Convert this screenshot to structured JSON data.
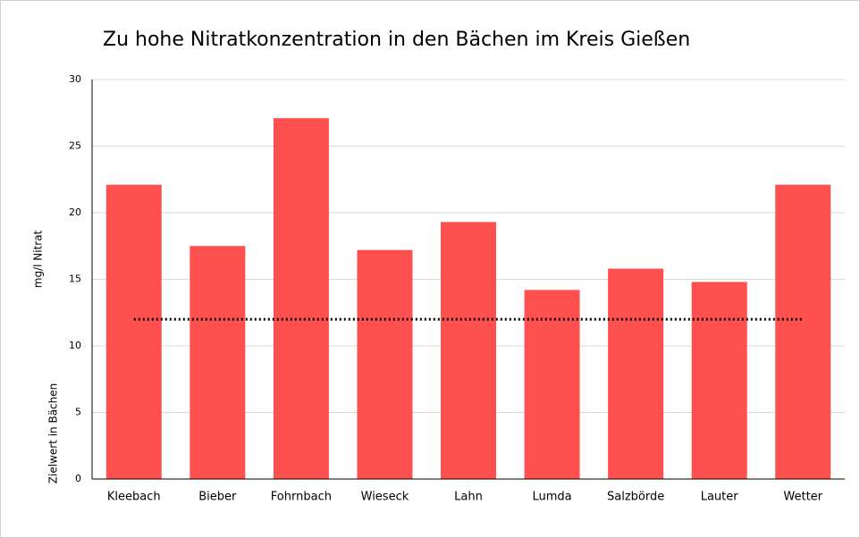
{
  "chart_data": {
    "type": "bar",
    "title": "Zu hohe Nitratkonzentration in den Bächen im Kreis Gießen",
    "y_label": "mg/l Nitrat",
    "categories": [
      "Kleebach",
      "Bieber",
      "Fohrnbach",
      "Wieseck",
      "Lahn",
      "Lumda",
      "Salzbörde",
      "Lauter",
      "Wetter"
    ],
    "values": [
      22.1,
      17.5,
      27.1,
      17.2,
      19.3,
      14.2,
      15.8,
      14.8,
      22.1
    ],
    "color": "#ff5050",
    "target": 12,
    "target_label": "Zielwert in Bächen",
    "ylim": [
      0,
      30
    ],
    "yticks": [
      0,
      5,
      10,
      15,
      20,
      25,
      30
    ],
    "grid": true
  }
}
